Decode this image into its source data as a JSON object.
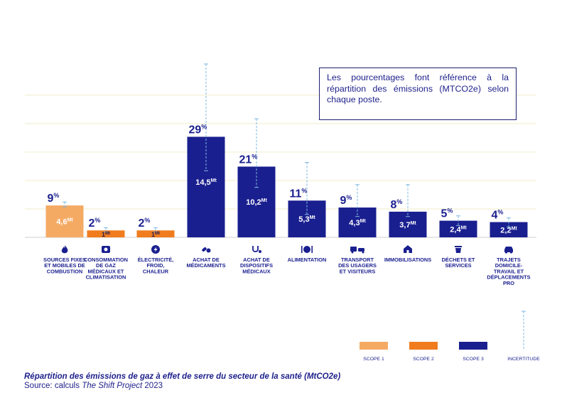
{
  "chart_data": {
    "type": "bar",
    "categories": [
      "SOURCES FIXES ET MOBILES DE COMBUSTION",
      "CONSOMMATION DE GAZ MÉDICAUX ET CLIMATISATION",
      "ÉLECTRICITÉ, FROID, CHALEUR",
      "ACHAT DE MÉDICAMENTS",
      "ACHAT DE DISPOSITIFS MÉDICAUX",
      "ALIMENTATION",
      "TRANSPORT DES USAGERS ET VISITEURS",
      "IMMOBILISATIONS",
      "DÉCHETS ET SERVICES",
      "TRAJETS DOMICILE-TRAVAIL ET DÉPLACEMENTS PRO"
    ],
    "category_lines": [
      [
        "SOURCES FIXES",
        "ET MOBILES DE",
        "COMBUSTION"
      ],
      [
        "CONSOMMATION",
        "DE GAZ",
        "MÉDICAUX ET",
        "CLIMATISATION"
      ],
      [
        "ÉLECTRICITÉ,",
        "FROID,",
        "CHALEUR"
      ],
      [
        "ACHAT DE",
        "MÉDICAMENTS"
      ],
      [
        "ACHAT DE",
        "DISPOSITIFS",
        "MÉDICAUX"
      ],
      [
        "ALIMENTATION"
      ],
      [
        "TRANSPORT",
        "DES USAGERS",
        "ET VISITEURS"
      ],
      [
        "IMMOBILISATIONS"
      ],
      [
        "DÉCHETS ET",
        "SERVICES"
      ],
      [
        "TRAJETS",
        "DOMICILE-",
        "TRAVAIL ET",
        "DÉPLACEMENTS",
        "PRO"
      ]
    ],
    "values": [
      4.6,
      1,
      1,
      14.5,
      10.2,
      5.3,
      4.3,
      3.7,
      2.4,
      2.2
    ],
    "value_labels": [
      "4,6",
      "1",
      "1",
      "14,5",
      "10,2",
      "5,3",
      "4,3",
      "3,7",
      "2,4",
      "2,2"
    ],
    "unit_label": "Mt",
    "percent_labels": [
      "9",
      "2",
      "2",
      "29",
      "21",
      "11",
      "9",
      "8",
      "5",
      "4"
    ],
    "percent_sign": "%",
    "scope": [
      1,
      2,
      2,
      3,
      3,
      3,
      3,
      3,
      3,
      3
    ],
    "uncertainty": [
      [
        4.4,
        5.1
      ],
      [
        0.8,
        1.4
      ],
      [
        0.8,
        1.4
      ],
      [
        9.6,
        25.0
      ],
      [
        7.2,
        17.1
      ],
      [
        3.3,
        10.8
      ],
      [
        3.0,
        7.6
      ],
      [
        3.0,
        7.6
      ],
      [
        1.7,
        3.1
      ],
      [
        1.5,
        2.8
      ]
    ],
    "icons": [
      "flame-icon",
      "gas-cylinder-icon",
      "lightning-icon",
      "pills-icon",
      "stethoscope-icon",
      "plate-icon",
      "vehicles-icon",
      "building-icon",
      "bin-icon",
      "car-icon"
    ],
    "ylim": [
      0,
      25
    ],
    "gridlines": [
      4.1,
      8.2,
      12.3,
      16.4,
      20.5
    ],
    "grid": true,
    "legend": [
      {
        "label": "SCOPE 1",
        "type": "swatch",
        "color": "#f5aa64"
      },
      {
        "label": "SCOPE 2",
        "type": "swatch",
        "color": "#f07c1e"
      },
      {
        "label": "SCOPE 3",
        "type": "swatch",
        "color": "#1a1f8f"
      },
      {
        "label": "INCERTITUDE",
        "type": "dashed",
        "color": "#7eb8e0"
      }
    ],
    "legend_position": "bottom-right",
    "scope_colors": {
      "1": "#f5aa64",
      "2": "#f07c1e",
      "3": "#1a1f8f"
    }
  },
  "note": "Les pourcentages font référence à la répartition des émissions (MTCO2e) selon chaque poste.",
  "caption": {
    "title": "Répartition des émissions de gaz à effet de serre du secteur de la santé (MtCO2e)",
    "source_prefix": "Source: calculs ",
    "source_italic": "The Shift Project",
    "source_suffix": " 2023"
  }
}
